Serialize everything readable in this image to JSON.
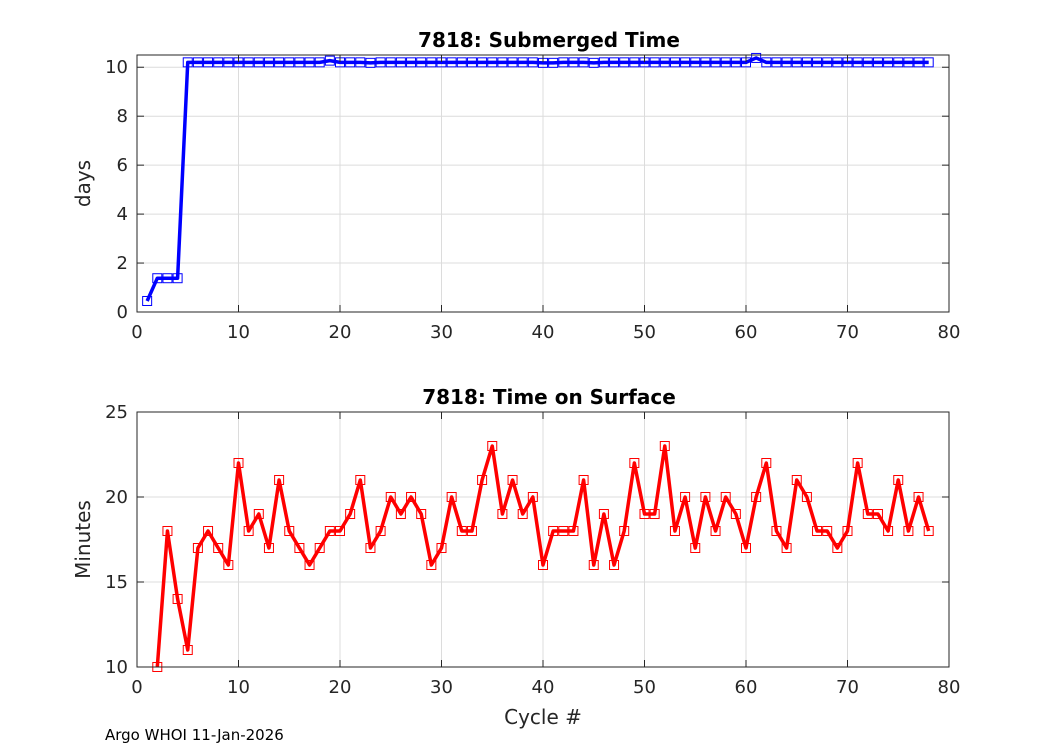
{
  "chart_data": [
    {
      "type": "line",
      "title": "7818: Submerged Time",
      "xlabel": "",
      "ylabel": "days",
      "xlim": [
        0,
        80
      ],
      "ylim": [
        0,
        10.5
      ],
      "xticks": [
        "0",
        "10",
        "20",
        "30",
        "40",
        "50",
        "60",
        "70",
        "80"
      ],
      "yticks": [
        "0",
        "2",
        "4",
        "6",
        "8",
        "10"
      ],
      "grid": true,
      "color": "#0000ff",
      "marker": "square",
      "series": [
        {
          "x": [
            1,
            2,
            3,
            4,
            5,
            6,
            7,
            8,
            9,
            10,
            11,
            12,
            13,
            14,
            15,
            16,
            17,
            18,
            19,
            20,
            21,
            22,
            23,
            24,
            25,
            26,
            27,
            28,
            29,
            30,
            31,
            32,
            33,
            34,
            35,
            36,
            37,
            38,
            39,
            40,
            41,
            42,
            43,
            44,
            45,
            46,
            47,
            48,
            49,
            50,
            51,
            52,
            53,
            54,
            55,
            56,
            57,
            58,
            59,
            60,
            61,
            62,
            63,
            64,
            65,
            66,
            67,
            68,
            69,
            70,
            71,
            72,
            73,
            74,
            75,
            76,
            77,
            78
          ],
          "values": [
            0.45,
            1.38,
            1.38,
            1.38,
            10.2,
            10.2,
            10.2,
            10.2,
            10.2,
            10.2,
            10.2,
            10.2,
            10.2,
            10.2,
            10.2,
            10.2,
            10.2,
            10.2,
            10.27,
            10.2,
            10.2,
            10.2,
            10.18,
            10.2,
            10.2,
            10.2,
            10.2,
            10.2,
            10.2,
            10.2,
            10.2,
            10.2,
            10.2,
            10.2,
            10.2,
            10.2,
            10.2,
            10.2,
            10.2,
            10.18,
            10.18,
            10.2,
            10.2,
            10.2,
            10.18,
            10.2,
            10.2,
            10.2,
            10.2,
            10.2,
            10.2,
            10.2,
            10.2,
            10.2,
            10.2,
            10.2,
            10.2,
            10.2,
            10.2,
            10.2,
            10.38,
            10.2,
            10.2,
            10.2,
            10.2,
            10.2,
            10.2,
            10.2,
            10.2,
            10.2,
            10.2,
            10.2,
            10.2,
            10.2,
            10.2,
            10.2,
            10.2,
            10.2
          ]
        }
      ]
    },
    {
      "type": "line",
      "title": "7818: Time on Surface",
      "xlabel": "Cycle #",
      "ylabel": "Minutes",
      "xlim": [
        0,
        80
      ],
      "ylim": [
        10,
        25
      ],
      "xticks": [
        "0",
        "10",
        "20",
        "30",
        "40",
        "50",
        "60",
        "70",
        "80"
      ],
      "yticks": [
        "10",
        "15",
        "20",
        "25"
      ],
      "grid": true,
      "color": "#ff0000",
      "marker": "square",
      "series": [
        {
          "x": [
            2,
            3,
            4,
            5,
            6,
            7,
            8,
            9,
            10,
            11,
            12,
            13,
            14,
            15,
            16,
            17,
            18,
            19,
            20,
            21,
            22,
            23,
            24,
            25,
            26,
            27,
            28,
            29,
            30,
            31,
            32,
            33,
            34,
            35,
            36,
            37,
            38,
            39,
            40,
            41,
            42,
            43,
            44,
            45,
            46,
            47,
            48,
            49,
            50,
            51,
            52,
            53,
            54,
            55,
            56,
            57,
            58,
            59,
            60,
            61,
            62,
            63,
            64,
            65,
            66,
            67,
            68,
            69,
            70,
            71,
            72,
            73,
            74,
            75,
            76,
            77,
            78
          ],
          "values": [
            10,
            18,
            14,
            11,
            17,
            18,
            17,
            16,
            22,
            18,
            19,
            17,
            21,
            18,
            17,
            16,
            17,
            18,
            18,
            19,
            21,
            17,
            18,
            20,
            19,
            20,
            19,
            16,
            17,
            20,
            18,
            18,
            21,
            23,
            19,
            21,
            19,
            20,
            16,
            18,
            18,
            18,
            21,
            16,
            19,
            16,
            18,
            22,
            19,
            19,
            23,
            18,
            20,
            17,
            20,
            18,
            20,
            19,
            17,
            20,
            22,
            18,
            17,
            21,
            20,
            18,
            18,
            17,
            18,
            22,
            19,
            19,
            18,
            21,
            18,
            20,
            18
          ]
        }
      ]
    }
  ],
  "footer": "Argo WHOI 11-Jan-2026"
}
